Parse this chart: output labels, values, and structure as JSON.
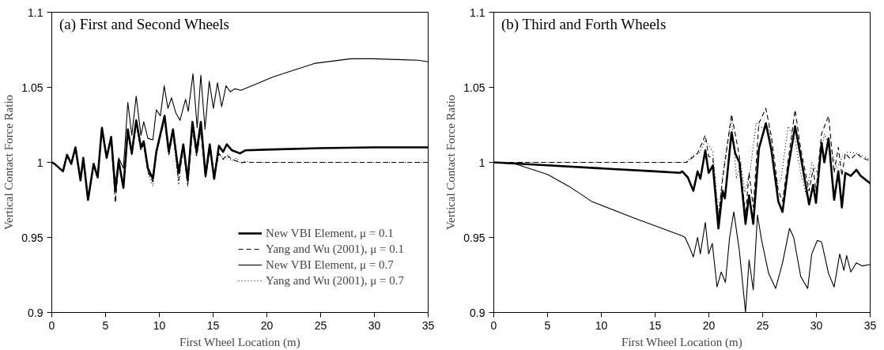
{
  "chart_data": [
    {
      "type": "line",
      "title": "(a) First and Second Wheels",
      "xlabel": "First Wheel Location (m)",
      "ylabel": "Vertical Contact Force Ratio",
      "xlim": [
        0,
        35
      ],
      "ylim": [
        0.9,
        1.1
      ],
      "xticks": [
        0,
        5,
        10,
        15,
        20,
        25,
        30,
        35
      ],
      "yticks": [
        0.9,
        0.95,
        1,
        1.05,
        1.1
      ],
      "grid": false,
      "legend": "bottom right",
      "series": [
        {
          "name": "New VBI Element, μ = 0.1",
          "color": "#000000",
          "line_style": "solid",
          "x": [
            0,
            0.26,
            1.04,
            1.42,
            1.81,
            2.2,
            2.67,
            2.93,
            3.37,
            3.89,
            4.27,
            4.66,
            5.1,
            5.52,
            5.91,
            6.22,
            6.66,
            7.07,
            7.44,
            7.85,
            8.29,
            8.55,
            8.94,
            9.4,
            9.72,
            10.49,
            10.88,
            11.27,
            11.79,
            12.23,
            12.64,
            13.08,
            13.47,
            13.86,
            14.3,
            14.69,
            15.1,
            15.54,
            15.93,
            16.27,
            16.76,
            17.5,
            18,
            20,
            25,
            30,
            35
          ],
          "values": [
            1.0,
            0.999,
            0.994,
            1.005,
            0.999,
            1.01,
            0.988,
            1.003,
            0.975,
            0.999,
            0.99,
            1.023,
            1.003,
            1.017,
            0.981,
            1.001,
            0.983,
            1.022,
            1.006,
            1.028,
            1.01,
            1.014,
            0.996,
            0.989,
            1.007,
            1.031,
            1.007,
            1.022,
            0.993,
            1.012,
            0.988,
            1.027,
            1.007,
            1.027,
            0.991,
            1.012,
            0.989,
            1.011,
            1.007,
            1.012,
            1.008,
            1.006,
            1.008,
            1.0085,
            1.0095,
            1.01,
            1.01
          ]
        },
        {
          "name": "Yang and Wu (2001), μ = 0.1",
          "color": "#000000",
          "line_style": "dashed",
          "x": [
            0,
            0.26,
            1.04,
            1.42,
            1.81,
            2.2,
            2.67,
            2.93,
            3.37,
            3.89,
            4.27,
            4.66,
            5.1,
            5.52,
            5.91,
            6.22,
            6.66,
            7.07,
            7.44,
            7.85,
            8.29,
            8.55,
            8.94,
            9.4,
            9.72,
            10.49,
            10.88,
            11.27,
            11.79,
            12.23,
            12.64,
            13.08,
            13.47,
            13.86,
            14.3,
            14.69,
            15.1,
            15.54,
            15.93,
            16.27,
            16.76,
            17.5,
            35
          ],
          "values": [
            1.0,
            0.999,
            0.994,
            1.005,
            0.999,
            1.01,
            0.988,
            1.003,
            0.975,
            0.999,
            0.99,
            1.022,
            1.003,
            1.016,
            0.973,
            1.0,
            0.983,
            1.02,
            1.005,
            1.026,
            1.008,
            1.012,
            0.994,
            0.987,
            1.006,
            1.029,
            1.005,
            1.02,
            0.988,
            1.01,
            0.985,
            1.022,
            1.004,
            1.022,
            0.99,
            1.008,
            0.99,
            1.006,
            1.002,
            1.005,
            1.002,
            1.0,
            1.0
          ]
        },
        {
          "name": "New VBI Element, μ = 0.7",
          "color": "#000000",
          "line_style": "solid",
          "x": [
            0,
            0.26,
            1.04,
            1.42,
            1.81,
            2.2,
            2.67,
            2.93,
            3.37,
            3.89,
            4.27,
            4.66,
            5.1,
            5.52,
            5.91,
            6.22,
            6.66,
            7.07,
            7.44,
            7.85,
            8.29,
            8.55,
            8.94,
            9.4,
            9.72,
            10.1,
            10.45,
            10.8,
            11.14,
            11.53,
            11.92,
            12.44,
            12.69,
            13.13,
            13.52,
            13.86,
            14.25,
            14.64,
            15.03,
            15.41,
            15.8,
            16.2,
            16.6,
            17.0,
            17.6,
            20.6,
            24.5,
            27.8,
            29.9,
            34.1,
            35
          ],
          "values": [
            1.0,
            0.999,
            0.994,
            1.005,
            0.999,
            1.01,
            0.988,
            1.003,
            0.975,
            0.999,
            0.99,
            1.023,
            1.003,
            1.017,
            0.983,
            1.003,
            0.996,
            1.04,
            1.018,
            1.044,
            1.018,
            1.027,
            1.016,
            1.015,
            1.035,
            1.031,
            1.051,
            1.036,
            1.043,
            1.033,
            1.028,
            1.042,
            1.034,
            1.059,
            1.023,
            1.058,
            1.022,
            1.054,
            1.036,
            1.053,
            1.037,
            1.051,
            1.047,
            1.049,
            1.048,
            1.057,
            1.066,
            1.069,
            1.069,
            1.068,
            1.067
          ]
        },
        {
          "name": "Yang and Wu (2001), μ = 0.7",
          "color": "#000000",
          "line_style": "dotted",
          "x": [
            0,
            0.26,
            1.04,
            1.42,
            1.81,
            2.2,
            2.67,
            2.93,
            3.37,
            3.89,
            4.27,
            4.66,
            5.1,
            5.52,
            5.91,
            6.22,
            6.66,
            7.07,
            7.44,
            7.85,
            8.29,
            8.55,
            8.94,
            9.4,
            9.72,
            10.49,
            10.88,
            11.27,
            11.79,
            12.23,
            12.64,
            13.08,
            13.47,
            13.86,
            14.3,
            14.69,
            15.1,
            15.54,
            15.93,
            16.27,
            16.76,
            17.2,
            17.6,
            18.0,
            18.5,
            35
          ],
          "values": [
            1.0,
            0.999,
            0.994,
            1.005,
            0.999,
            1.01,
            0.988,
            1.003,
            0.975,
            0.999,
            0.99,
            1.022,
            1.003,
            1.016,
            0.974,
            1.0,
            0.983,
            1.02,
            1.005,
            1.026,
            1.008,
            1.012,
            0.993,
            0.984,
            1.006,
            1.029,
            1.005,
            1.02,
            0.985,
            1.01,
            0.984,
            1.022,
            1.004,
            1.022,
            0.99,
            1.008,
            0.99,
            1.006,
            1.002,
            1.004,
            1.001,
            1.003,
            0.999,
            1.001,
            1.0,
            1.0
          ]
        }
      ]
    },
    {
      "type": "line",
      "title": "(b) Third and Forth Wheels",
      "xlabel": "First Wheel Location (m)",
      "ylabel": "Vertical Contact Force Ratio",
      "xlim": [
        0,
        35
      ],
      "ylim": [
        0.9,
        1.1
      ],
      "xticks": [
        0,
        5,
        10,
        15,
        20,
        25,
        30,
        35
      ],
      "yticks": [
        0.9,
        0.95,
        1,
        1.05,
        1.1
      ],
      "grid": false,
      "series": [
        {
          "color": "#000000",
          "line_style": "solid",
          "x": [
            0,
            5,
            10,
            15,
            17.3,
            17.52,
            18.04,
            18.56,
            18.95,
            19.21,
            19.67,
            19.98,
            20.37,
            20.89,
            21.28,
            21.49,
            22.11,
            22.45,
            22.84,
            23.41,
            23.74,
            24.13,
            24.65,
            25.3,
            25.82,
            26.46,
            26.85,
            27.37,
            28.02,
            28.54,
            29.32,
            29.7,
            29.96,
            30.48,
            30.74,
            31.13,
            31.65,
            32.04,
            32.37,
            32.69,
            33.2,
            33.72,
            34.11,
            35
          ],
          "values": [
            1.0,
            0.998,
            0.996,
            0.994,
            0.993,
            0.994,
            0.99,
            0.981,
            0.994,
            0.989,
            1.008,
            0.993,
            0.998,
            0.956,
            0.981,
            0.976,
            1.02,
            1.006,
            1.0,
            0.959,
            0.978,
            0.959,
            1.009,
            1.026,
            1.008,
            0.974,
            0.967,
            0.996,
            1.024,
            1.004,
            0.972,
            0.985,
            0.973,
            1.013,
            1.0,
            1.016,
            0.975,
            0.994,
            0.97,
            0.993,
            0.991,
            0.995,
            0.991,
            0.986
          ]
        },
        {
          "color": "#000000",
          "line_style": "dashed",
          "x": [
            0,
            17.5,
            17.91,
            18.95,
            19.67,
            19.98,
            20.37,
            20.89,
            21.28,
            22.11,
            22.84,
            23.41,
            23.74,
            24.13,
            24.65,
            25.3,
            25.82,
            26.46,
            26.85,
            28.02,
            28.54,
            29.32,
            29.7,
            29.96,
            30.48,
            31.13,
            31.65,
            32.04,
            32.37,
            32.69,
            33.2,
            33.72,
            34.24,
            35
          ],
          "values": [
            1.0,
            1.0,
            1.0,
            1.006,
            1.018,
            1.004,
            1.003,
            0.963,
            0.989,
            1.032,
            1.004,
            0.965,
            0.993,
            0.97,
            1.026,
            1.036,
            1.017,
            0.981,
            0.974,
            1.035,
            1.009,
            0.981,
            0.996,
            0.981,
            1.019,
            1.031,
            0.993,
            1.01,
            0.991,
            1.006,
            1.002,
            1.006,
            1.003,
            1.001
          ]
        },
        {
          "color": "#000000",
          "line_style": "solid",
          "x": [
            0,
            2,
            5,
            7,
            9.1,
            13,
            17.52,
            17.78,
            18.17,
            18.56,
            18.95,
            19.21,
            19.67,
            19.98,
            20.32,
            20.76,
            21.15,
            21.54,
            21.93,
            22.32,
            22.84,
            23.41,
            23.74,
            24.13,
            24.52,
            24.91,
            25.56,
            26.21,
            26.85,
            27.5,
            27.89,
            28.54,
            29.19,
            29.57,
            30.09,
            30.48,
            31.13,
            31.65,
            32.17,
            32.56,
            32.81,
            33.2,
            33.72,
            34.24,
            35
          ],
          "values": [
            1.0,
            0.999,
            0.992,
            0.984,
            0.974,
            0.963,
            0.951,
            0.95,
            0.944,
            0.937,
            0.95,
            0.939,
            0.96,
            0.939,
            0.946,
            0.917,
            0.927,
            0.92,
            0.95,
            0.967,
            0.941,
            0.9,
            0.935,
            0.915,
            0.965,
            0.948,
            0.926,
            0.916,
            0.933,
            0.956,
            0.95,
            0.924,
            0.916,
            0.939,
            0.948,
            0.947,
            0.926,
            0.917,
            0.939,
            0.928,
            0.938,
            0.927,
            0.933,
            0.931,
            0.932
          ]
        },
        {
          "color": "#000000",
          "line_style": "dotted",
          "x": [
            0,
            17.5,
            17.91,
            18.43,
            19.21,
            19.67,
            20.37,
            20.89,
            21.28,
            22.11,
            22.58,
            22.97,
            23.35,
            23.87,
            24.39,
            25.17,
            25.56,
            26.34,
            26.72,
            27.37,
            28.02,
            28.54,
            29.06,
            29.57,
            30.09,
            30.74,
            31.39,
            31.91,
            32.43,
            32.94,
            33.72,
            35
          ],
          "values": [
            1.0,
            1.0,
            1.0,
            1.004,
            1.007,
            1.015,
            1.007,
            0.965,
            0.991,
            1.03,
            0.989,
            1.0,
            0.98,
            0.996,
            1.026,
            1.022,
            1.024,
            0.985,
            0.989,
            1.024,
            1.015,
            0.993,
            0.978,
            1.0,
            0.993,
            1.019,
            1.007,
            0.996,
            1.004,
            1.007,
            1.006,
            1.002
          ]
        }
      ]
    }
  ]
}
